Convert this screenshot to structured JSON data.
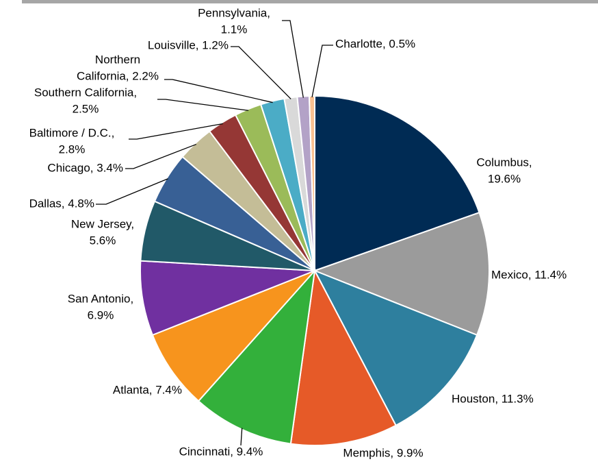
{
  "chart_data": {
    "type": "pie",
    "values": [
      19.6,
      11.4,
      11.3,
      9.9,
      9.4,
      7.4,
      6.9,
      5.6,
      4.8,
      3.4,
      2.8,
      2.5,
      2.2,
      1.2,
      1.1,
      0.5
    ],
    "value_labels": [
      [
        "Columbus,",
        "19.6%"
      ],
      [
        "Mexico, 11.4%"
      ],
      [
        "Houston, 11.3%"
      ],
      [
        "Memphis, 9.9%"
      ],
      [
        "Cincinnati, 9.4%"
      ],
      [
        "Atlanta, 7.4%"
      ],
      [
        "San Antonio,",
        "6.9%"
      ],
      [
        "New Jersey,",
        "5.6%"
      ],
      [
        "Dallas, 4.8%"
      ],
      [
        "Chicago, 3.4%"
      ],
      [
        "Baltimore / D.C.,",
        "2.8%"
      ],
      [
        "Southern California,",
        "2.5%"
      ],
      [
        "Northern",
        "California, 2.2%"
      ],
      [
        "Louisville, 1.2%"
      ],
      [
        "Pennsylvania,",
        "1.1%"
      ],
      [
        "Charlotte, 0.5%"
      ]
    ],
    "colors": [
      "#002b54",
      "#9b9b9b",
      "#2e7f9e",
      "#e65a28",
      "#33b03b",
      "#f7941d",
      "#7030a0",
      "#215968",
      "#386095",
      "#c4bd97",
      "#953735",
      "#9bbb59",
      "#4bacc6",
      "#d9d9d9",
      "#b3a2c7",
      "#fac090"
    ]
  }
}
